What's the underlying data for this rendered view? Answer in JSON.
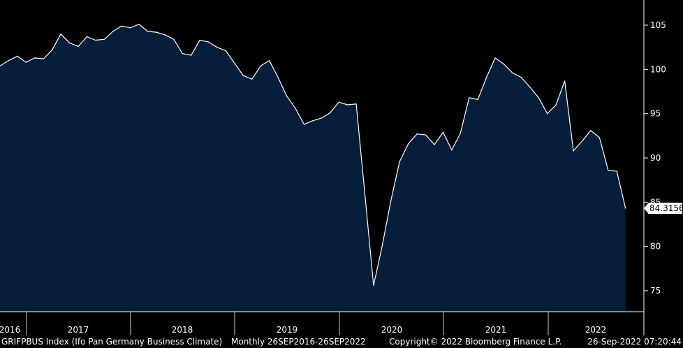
{
  "colors": {
    "background": "#000000",
    "area_fill": "#061e3a",
    "line": "#ffffff",
    "last_value_bg": "#ffffff",
    "last_value_text": "#000000"
  },
  "footer": {
    "title": "GRIFPBUS Index (Ifo Pan Germany Business Climate)",
    "range": "Monthly 26SEP2016-26SEP2022",
    "copyright": "Copyright© 2022 Bloomberg Finance L.P.",
    "timestamp": "26-Sep-2022 07:20:44"
  },
  "chart_data": {
    "type": "area",
    "title": "",
    "xlabel": "",
    "ylabel": "",
    "ylim": [
      73,
      107.5
    ],
    "y_ticks": [
      75,
      80,
      85,
      90,
      95,
      100,
      105
    ],
    "x_year_labels": [
      "2016",
      "2017",
      "2018",
      "2019",
      "2020",
      "2021",
      "2022"
    ],
    "last_value_label": "84.3156",
    "x_start": "2016-09",
    "series": [
      {
        "values": [
          100.4,
          101.0,
          101.5,
          100.8,
          101.3,
          101.2,
          102.2,
          104.0,
          103.0,
          102.6,
          103.7,
          103.3,
          103.4,
          104.3,
          104.9,
          104.7,
          105.1,
          104.3,
          104.2,
          103.9,
          103.4,
          101.8,
          101.6,
          103.3,
          103.1,
          102.5,
          102.1,
          100.7,
          99.3,
          98.9,
          100.4,
          101.0,
          99.1,
          97.0,
          95.6,
          93.8,
          94.2,
          94.5,
          95.1,
          96.3,
          96.0,
          96.1,
          85.9,
          75.6,
          80.1,
          85.2,
          89.6,
          91.6,
          92.7,
          92.6,
          91.5,
          92.9,
          90.9,
          92.8,
          96.8,
          96.6,
          99.1,
          101.3,
          100.6,
          99.6,
          99.1,
          98.0,
          96.8,
          95.0,
          96.0,
          98.7,
          90.8,
          91.9,
          93.1,
          92.3,
          88.6,
          88.5,
          84.3156
        ]
      }
    ],
    "grid": false,
    "legend": "none"
  }
}
